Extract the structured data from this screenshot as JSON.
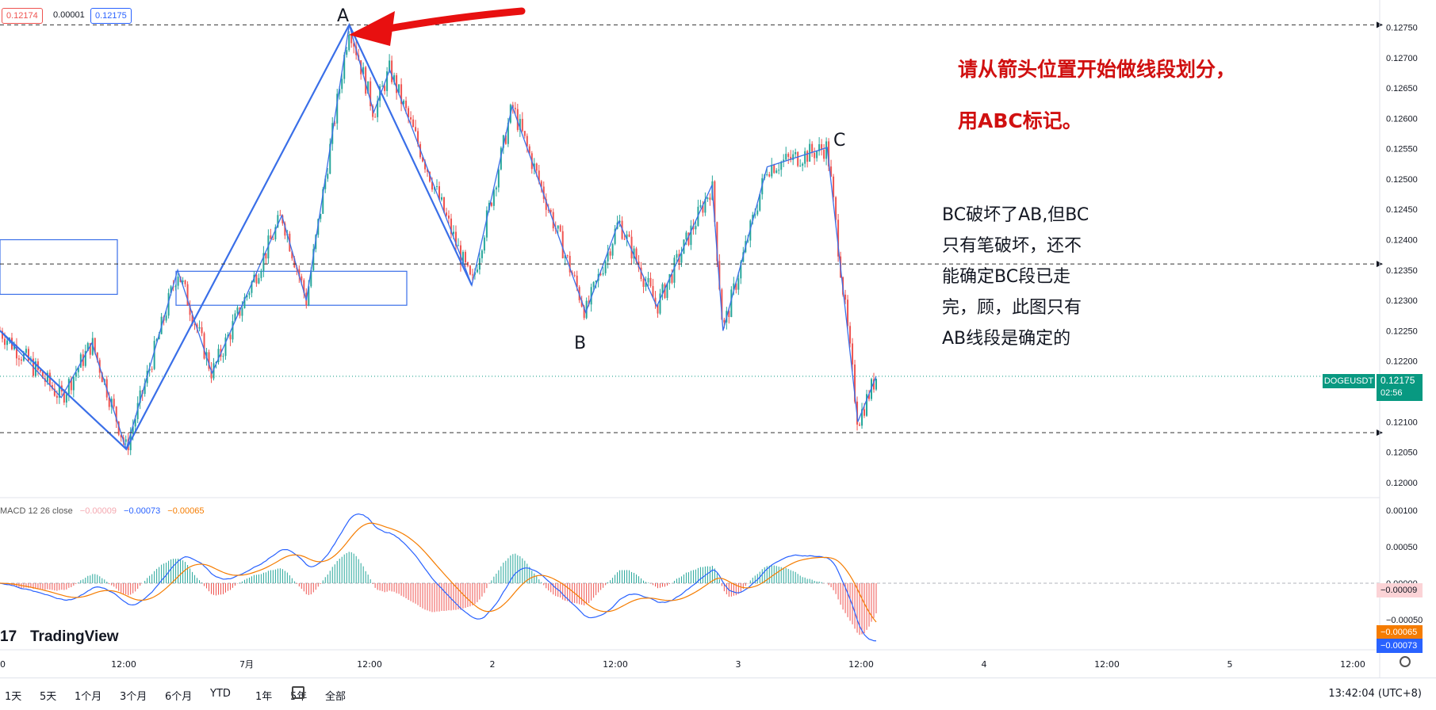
{
  "header": {
    "bid": "0.12174",
    "spread": "0.00001",
    "ask": "0.12175"
  },
  "labels": {
    "A": "A",
    "B": "B",
    "C": "C"
  },
  "annotation": {
    "red_line1": "请从箭头位置开始做线段划分，",
    "red_line2": "用ABC标记。",
    "note_lines": [
      "BC破坏了AB,但BC",
      "只有笔破坏，还不",
      "能确定BC段已走",
      "完，顾，此图只有",
      "AB线段是确定的"
    ]
  },
  "symbol": {
    "name": "DOGEUSDT",
    "last": "0.12175",
    "countdown": "02:56"
  },
  "macd": {
    "label": "MACD 12 26 close",
    "hist": "−0.00009",
    "macd": "−0.00073",
    "signal": "−0.00065"
  },
  "macd_axis": [
    "0.00100",
    "0.00050",
    "0.00000",
    "−0.00050"
  ],
  "macd_tags": {
    "hist": "−0.00009",
    "signal": "−0.00065",
    "macd": "−0.00073"
  },
  "x_ticks": [
    "0",
    "12:00",
    "7月",
    "12:00",
    "2",
    "12:00",
    "3",
    "12:00",
    "4",
    "12:00",
    "5",
    "12:00"
  ],
  "logo": "TradingView",
  "timeframes": [
    "1天",
    "5天",
    "1个月",
    "3个月",
    "6个月",
    "YTD",
    "1年",
    "5年",
    "全部"
  ],
  "clock": "13:42:04 (UTC+8)",
  "colors": {
    "up": "#26a69a",
    "down": "#ef5350",
    "pen": "#3a6fe8",
    "arrow": "#e81010",
    "macd": "#2962ff",
    "signal": "#f57c00"
  },
  "chart_data": {
    "type": "candlestick",
    "y_range": [
      0.11975,
      0.12795
    ],
    "y_ticks": [
      "0.12750",
      "0.12700",
      "0.12650",
      "0.12600",
      "0.12550",
      "0.12500",
      "0.12450",
      "0.12400",
      "0.12350",
      "0.12300",
      "0.12250",
      "0.12200",
      "0.12150",
      "0.12100",
      "0.12050",
      "0.12000"
    ],
    "horizontal_lines": [
      0.12754,
      0.1236,
      0.12082
    ],
    "pivots": [
      {
        "t": 0,
        "p": 0.1225
      },
      {
        "t": 0.05,
        "p": 0.1214
      },
      {
        "t": 0.075,
        "p": 0.1223
      },
      {
        "t": 0.103,
        "p": 0.12055
      },
      {
        "t": 0.145,
        "p": 0.1235
      },
      {
        "t": 0.173,
        "p": 0.1218
      },
      {
        "t": 0.23,
        "p": 0.1244
      },
      {
        "t": 0.25,
        "p": 0.123
      },
      {
        "t": 0.285,
        "p": 0.12754
      },
      {
        "t": 0.305,
        "p": 0.1261
      },
      {
        "t": 0.318,
        "p": 0.1268
      },
      {
        "t": 0.337,
        "p": 0.1258
      },
      {
        "t": 0.385,
        "p": 0.12325
      },
      {
        "t": 0.418,
        "p": 0.1262
      },
      {
        "t": 0.478,
        "p": 0.1228
      },
      {
        "t": 0.505,
        "p": 0.1243
      },
      {
        "t": 0.536,
        "p": 0.1229
      },
      {
        "t": 0.581,
        "p": 0.1249
      },
      {
        "t": 0.59,
        "p": 0.1225
      },
      {
        "t": 0.626,
        "p": 0.1252
      },
      {
        "t": 0.675,
        "p": 0.12552
      },
      {
        "t": 0.7,
        "p": 0.121
      },
      {
        "t": 0.715,
        "p": 0.12175
      }
    ]
  }
}
